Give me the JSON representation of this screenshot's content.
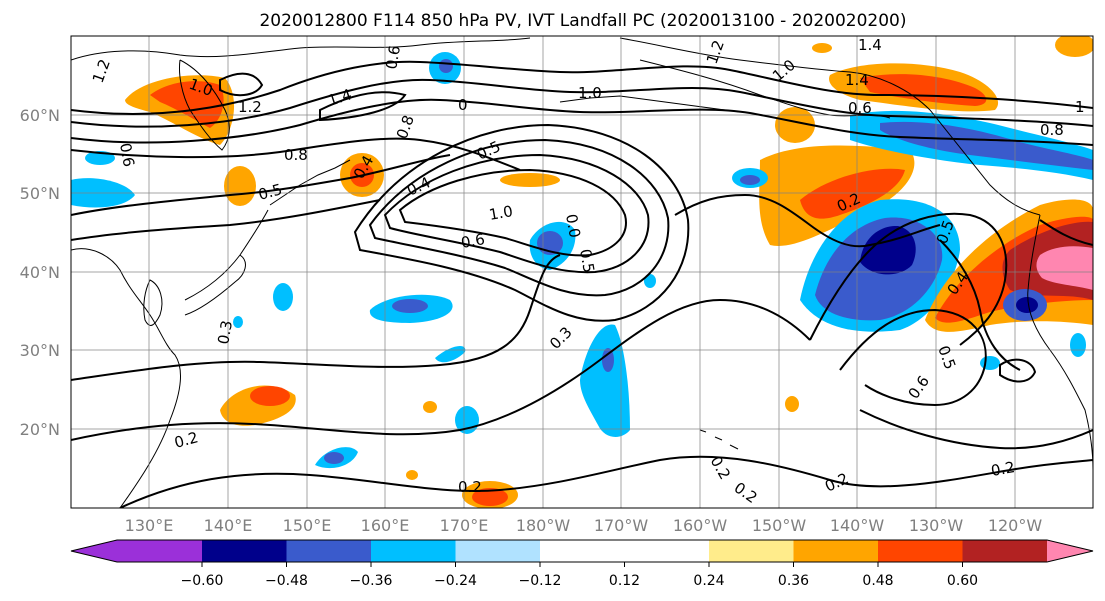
{
  "title": "2020012800 F114 850 hPa PV, IVT Landfall PC (2020013100 - 2020020200)",
  "lat_labels": [
    "60°N",
    "50°N",
    "40°N",
    "30°N",
    "20°N"
  ],
  "lon_labels": [
    "130°E",
    "140°E",
    "150°E",
    "160°E",
    "170°E",
    "180°W",
    "170°W",
    "160°W",
    "150°W",
    "140°W",
    "130°W",
    "120°W"
  ],
  "colorbar": {
    "colors": [
      "#9b30d9",
      "#00008b",
      "#3a5bcc",
      "#00bfff",
      "#b0e2ff",
      "#ffffff",
      "#ffec8b",
      "#ffa500",
      "#ff4500",
      "#b22222",
      "#ff86b0"
    ],
    "ticks": [
      "−0.60",
      "−0.48",
      "−0.36",
      "−0.24",
      "−0.12",
      "0.12",
      "0.24",
      "0.36",
      "0.48",
      "0.60"
    ]
  },
  "contour_labels": [
    "1.2",
    "1.0",
    "1.2",
    "1.4",
    "0.8",
    "0.6",
    "0.5",
    "0.4",
    "1.0",
    "0.6",
    "0.5",
    "0.4",
    "0",
    "0.5",
    "0.3",
    "0.3",
    "0.2",
    "0.2",
    "0.2",
    "0.2",
    "0.2",
    "0.2",
    "1.4",
    "1.2",
    "1.0",
    "1.4",
    "0.6",
    "0.2",
    "0.5",
    "0.4",
    "0.5",
    "0.6",
    "1",
    "0.8",
    "0.6",
    "1.0",
    "0.8",
    "0.0"
  ]
}
